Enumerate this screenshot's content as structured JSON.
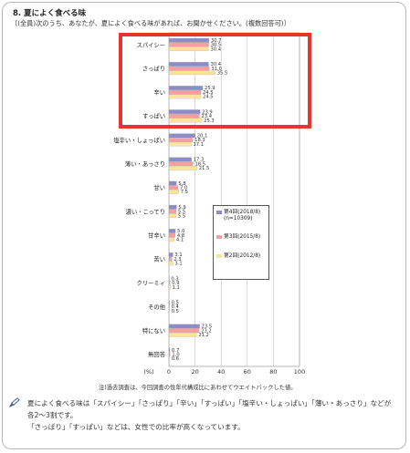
{
  "header": {
    "title": "8. 夏によく食べる味",
    "question": "〔(全員)次のうち、あなたが、夏によく食べる味があれば、お聞かせください。(複数回答可)〕"
  },
  "chart_data": {
    "type": "bar",
    "orientation": "horizontal",
    "categories": [
      "スパイシー",
      "さっぱり",
      "辛い",
      "すっぱい",
      "塩辛い・しょっぱい",
      "薄い・あっさり",
      "甘い",
      "濃い・こってり",
      "甘辛い",
      "苦い",
      "クリーミィ",
      "その他",
      "特にない",
      "無回答"
    ],
    "series": [
      {
        "name": "第4回(2018/8)",
        "color": "#8c8cc8",
        "values": [
          30.7,
          30.4,
          25.9,
          23.9,
          20.1,
          17.3,
          5.8,
          5.9,
          5.0,
          3.1,
          0.3,
          0.5,
          23.5,
          0.7
        ]
      },
      {
        "name": "第3回(2015/8)",
        "color": "#f4a0a0",
        "values": [
          30.5,
          31.0,
          24.5,
          23.4,
          18.3,
          18.5,
          7.0,
          5.5,
          4.8,
          2.3,
          0.9,
          0.4,
          23.2,
          1.0
        ]
      },
      {
        "name": "第2回(2012/8)",
        "color": "#fbe49a",
        "values": [
          30.4,
          35.5,
          24.5,
          25.3,
          17.1,
          21.5,
          7.5,
          5.5,
          4.1,
          3.1,
          1.1,
          0.5,
          21.2,
          0.6
        ]
      }
    ],
    "value_labels": [
      [
        "30.7",
        "30.5",
        "30.4"
      ],
      [
        "30.4",
        "31.0",
        "35.5"
      ],
      [
        "25.9",
        "24.5",
        "24.5"
      ],
      [
        "23.9",
        "23.4",
        "25.3"
      ],
      [
        "20.1",
        "18.3",
        "17.1"
      ],
      [
        "17.3",
        "18.5",
        "21.5"
      ],
      [
        "5.8",
        "7.0",
        "7.5"
      ],
      [
        "5.9",
        "5.5",
        "5.5"
      ],
      [
        "5.0",
        "4.8",
        "4.1"
      ],
      [
        "3.1",
        "2.3",
        "3.1"
      ],
      [
        "0.3",
        "0.9",
        "1.1"
      ],
      [
        "0.5",
        "0.4",
        "0.5"
      ],
      [
        "23.5",
        "23.2",
        "21.2"
      ],
      [
        "0.7",
        "1.0",
        "0.6"
      ]
    ],
    "x_ticks": [
      "0",
      "20",
      "40",
      "60",
      "80",
      "100"
    ],
    "xlim": [
      0,
      100
    ],
    "unit_label": "(%)",
    "grid": true,
    "legend_position": "right",
    "highlighted_categories": [
      "スパイシー",
      "さっぱり",
      "辛い",
      "すっぱい"
    ],
    "highlight_color": "#e0382a"
  },
  "legend": {
    "item1": "第4回(2018/8)",
    "item1_n": "(n=10309)",
    "item2": "第3回(2015/8)",
    "item3": "第2回(2012/8)"
  },
  "note": "注)過去調査は、今回調査の性年代構成比にあわせてウエイトバックした値。",
  "summary": {
    "line1": "夏によく食べる味は「スパイシー」「さっぱり」「辛い」「すっぱい」「塩辛い・しょっぱい」「薄い・あっさり」などが各2〜3割です。",
    "line2": "「さっぱり」「すっぱい」などは、女性での比率が高くなっています。"
  }
}
